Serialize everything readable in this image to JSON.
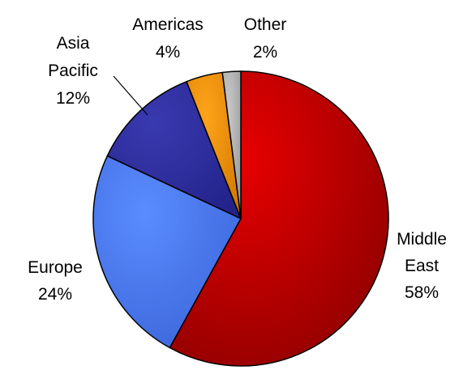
{
  "chart_data": {
    "type": "pie",
    "title": "",
    "start_angle_deg": 0,
    "direction": "clockwise",
    "slices": [
      {
        "label_lines": [
          "Middle",
          "East"
        ],
        "percent_label": "58%",
        "value": 58,
        "color": "#e60000",
        "color_dark": "#8b0000",
        "label_placement": "right"
      },
      {
        "label_lines": [
          "Europe"
        ],
        "percent_label": "24%",
        "value": 24,
        "color": "#5a8cff",
        "color_dark": "#3a64d8",
        "label_placement": "left"
      },
      {
        "label_lines": [
          "Asia",
          "Pacific"
        ],
        "percent_label": "12%",
        "value": 12,
        "color": "#3a3ab0",
        "color_dark": "#22228a",
        "label_placement": "top-left",
        "leader_line": true
      },
      {
        "label_lines": [
          "Americas"
        ],
        "percent_label": "4%",
        "value": 4,
        "color": "#ffa31a",
        "color_dark": "#d27a00",
        "label_placement": "top"
      },
      {
        "label_lines": [
          "Other"
        ],
        "percent_label": "2%",
        "value": 2,
        "color": "#c8c8c8",
        "color_dark": "#9a9a9a",
        "label_placement": "top"
      }
    ]
  }
}
